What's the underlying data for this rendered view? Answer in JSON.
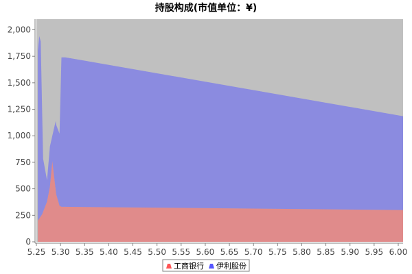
{
  "chart_data": {
    "type": "area",
    "title": "持股构成(市值单位：¥)",
    "xlabel": "",
    "ylabel": "",
    "xlim": [
      5.25,
      6.01
    ],
    "ylim": [
      0,
      2100
    ],
    "x_ticks": [
      "5.25",
      "5.30",
      "5.35",
      "5.40",
      "5.45",
      "5.50",
      "5.55",
      "5.60",
      "5.65",
      "5.70",
      "5.75",
      "5.80",
      "5.85",
      "5.90",
      "5.95",
      "6.00"
    ],
    "y_ticks": [
      "0",
      "250",
      "500",
      "750",
      "1,000",
      "1,250",
      "1,500",
      "1,750",
      "2,000"
    ],
    "legend_position": "bottom-center",
    "stacked": true,
    "series": [
      {
        "name": "工商银行",
        "color": "#ff5555",
        "points": [
          [
            5.253,
            200
          ],
          [
            5.262,
            260
          ],
          [
            5.272,
            380
          ],
          [
            5.278,
            520
          ],
          [
            5.283,
            760
          ],
          [
            5.291,
            450
          ],
          [
            5.298,
            340
          ],
          [
            5.302,
            330
          ],
          [
            5.31,
            330
          ],
          [
            6.01,
            300
          ]
        ]
      },
      {
        "name": "伊利股份",
        "color": "#5555ff",
        "points": [
          [
            5.253,
            1600
          ],
          [
            5.256,
            1720
          ],
          [
            5.259,
            1650
          ],
          [
            5.264,
            500
          ],
          [
            5.272,
            200
          ],
          [
            5.278,
            380
          ],
          [
            5.283,
            240
          ],
          [
            5.29,
            650
          ],
          [
            5.298,
            680
          ],
          [
            5.302,
            1410
          ],
          [
            5.31,
            1410
          ],
          [
            6.01,
            885
          ]
        ]
      }
    ]
  }
}
